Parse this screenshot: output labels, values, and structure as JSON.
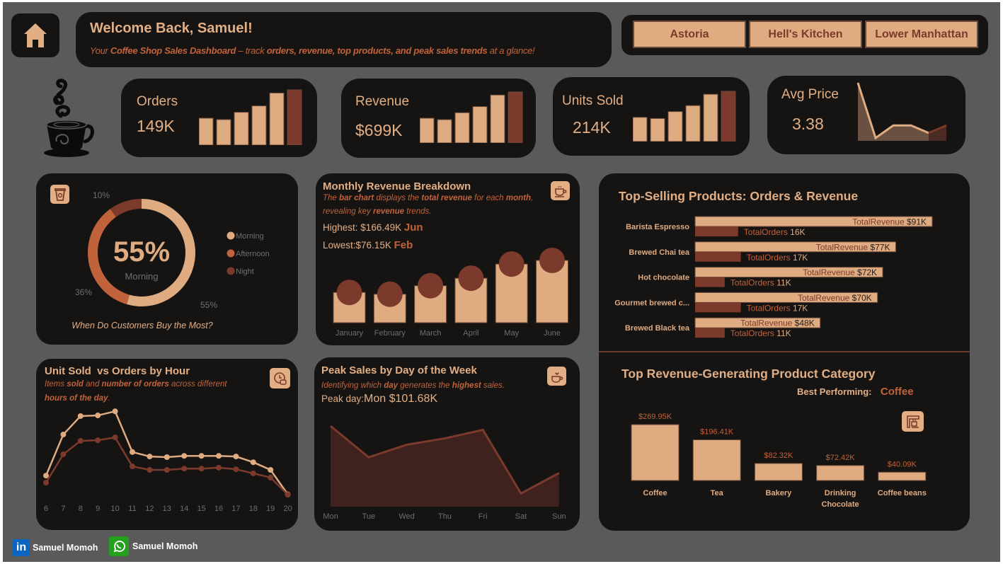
{
  "header": {
    "title": "Welcome Back, Samuel!",
    "subtitle": [
      "Your ",
      "Coffee Shop Sales Dashboard",
      " – track ",
      "orders, revenue, top products, and peak sales trends",
      " at a glance!"
    ]
  },
  "locations": [
    "Astoria",
    "Hell's Kitchen",
    "Lower Manhattan"
  ],
  "kpis": {
    "orders": {
      "label": "Orders",
      "value": "149K",
      "trend": [
        17.3,
        16.4,
        21.1,
        25.2,
        33.5,
        35.5
      ]
    },
    "revenue": {
      "label": "Revenue",
      "value": "$699K",
      "trend": [
        80.9,
        76.15,
        98.8,
        118.9,
        156.7,
        166.49
      ]
    },
    "units": {
      "label": "Units Sold",
      "value": "214K",
      "trend": [
        24.6,
        23.4,
        30.4,
        36.5,
        48.0,
        51.0
      ]
    },
    "avg_price": {
      "label": "Avg Price",
      "value": "3.38",
      "trend": [
        3.52,
        3.3,
        3.35,
        3.35,
        3.32,
        3.35
      ]
    }
  },
  "colors": {
    "background": "#5a5a5a",
    "panel": "#161413",
    "beige": "#dfab80",
    "brown": "#7b3a2b",
    "orange": "#c0623a",
    "area": "#3f221d"
  },
  "chart_data": [
    {
      "type": "pie",
      "center_value": "55%",
      "center_label": "Morning",
      "caption": "When Do Customers Buy the Most?",
      "slices": [
        {
          "name": "Morning",
          "value": 55,
          "label": "55%",
          "color": "#dfab80"
        },
        {
          "name": "Afternoon",
          "value": 36,
          "label": "36%",
          "color": "#c0623a"
        },
        {
          "name": "Night",
          "value": 10,
          "label": "10%",
          "color": "#7b3a2b"
        }
      ],
      "legend": "right"
    },
    {
      "type": "bar",
      "title": "Monthly Revenue Breakdown",
      "description": [
        "The ",
        "bar chart",
        " displays the ",
        "total revenue",
        " for each ",
        "month",
        ",",
        "revealing key ",
        "revenue",
        " trends."
      ],
      "highest": {
        "label": "Highest:",
        "value": "$166.49K",
        "month": "Jun"
      },
      "lowest": {
        "label": "Lowest:",
        "value": "$76.15K",
        "month": "Feb"
      },
      "categories": [
        "January",
        "February",
        "March",
        "April",
        "May",
        "June"
      ],
      "values": [
        80.9,
        76.15,
        98.8,
        118.9,
        156.7,
        166.49
      ],
      "unit": "$K"
    },
    {
      "type": "line",
      "title": "Unit Sold  vs Orders by Hour",
      "description": [
        "Items ",
        "sold",
        " and ",
        "number of orders",
        " across different",
        "hours of the day",
        "."
      ],
      "x": [
        6,
        7,
        8,
        9,
        10,
        11,
        12,
        13,
        14,
        15,
        16,
        17,
        18,
        19,
        20
      ],
      "series": [
        {
          "values": [
            6.2,
            19.1,
            24.9,
            25.1,
            26.4,
            13.6,
            12.2,
            12.0,
            12.4,
            12.4,
            12.4,
            12.2,
            10.4,
            8.0,
            0.3
          ],
          "color": "#dfab80"
        },
        {
          "values": [
            4.0,
            12.9,
            17.1,
            17.3,
            18.2,
            9.1,
            8.0,
            8.0,
            8.4,
            8.4,
            8.7,
            8.2,
            6.9,
            5.6,
            0.2
          ],
          "color": "#7b3a2b"
        }
      ],
      "unit": "K"
    },
    {
      "type": "area",
      "title": "Peak Sales by Day of the Week",
      "description": [
        "Identifying which ",
        "day",
        " generates the ",
        "highest",
        " sales."
      ],
      "peak": {
        "label": "Peak day:",
        "value": "Mon $101.68K"
      },
      "categories": [
        "Mon",
        "Tue",
        "Wed",
        "Thu",
        "Fri",
        "Sat",
        "Sun"
      ],
      "values": [
        101.68,
        99.48,
        100.36,
        100.81,
        101.41,
        96.93,
        98.37
      ],
      "ylim": [
        96,
        102
      ],
      "unit": "$K"
    },
    {
      "type": "bar",
      "title": "Top-Selling Products: Orders & Revenue",
      "orientation": "horizontal",
      "categories": [
        "Barista Espresso",
        "Brewed Chai tea",
        "Hot chocolate",
        "Gourmet brewed c...",
        "Brewed Black tea"
      ],
      "series": [
        {
          "name": "TotalRevenue",
          "values": [
            91,
            77,
            72,
            70,
            48
          ],
          "labels": [
            "$91K",
            "$77K",
            "$72K",
            "$70K",
            "$48K"
          ],
          "color": "#dfab80"
        },
        {
          "name": "TotalOrders",
          "values": [
            16,
            17,
            11,
            17,
            11
          ],
          "labels": [
            "16K",
            "17K",
            "11K",
            "17K",
            "11K"
          ],
          "color": "#7b3a2b"
        }
      ]
    },
    {
      "type": "bar",
      "title": "Top Revenue-Generating Product Category",
      "best": {
        "label": "Best Performing:",
        "value": "Coffee"
      },
      "categories": [
        "Coffee",
        "Tea",
        "Bakery",
        "Drinking Chocolate",
        "Coffee beans"
      ],
      "values": [
        269.95,
        196.41,
        82.32,
        72.42,
        40.09
      ],
      "labels": [
        "$269.95K",
        "$196.41K",
        "$82.32K",
        "$72.42K",
        "$40.09K"
      ],
      "unit": "$K"
    }
  ],
  "footer": {
    "linkedin": "Samuel Momoh",
    "whatsapp": "Samuel Momoh"
  }
}
